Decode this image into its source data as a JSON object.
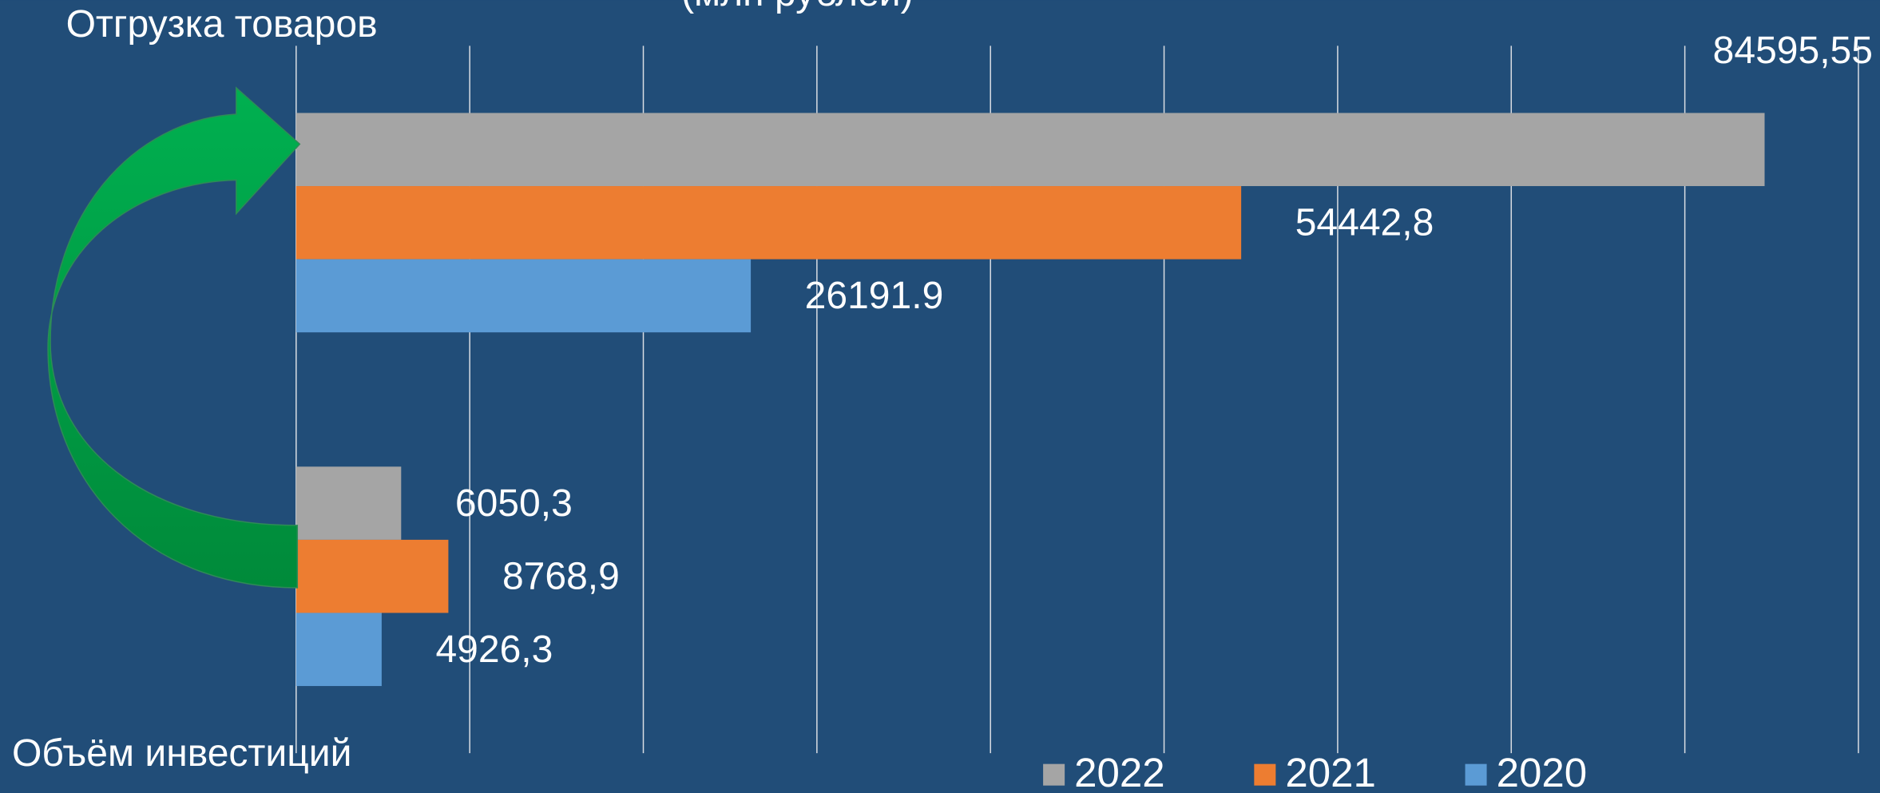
{
  "chart_data": {
    "type": "bar",
    "orientation": "horizontal",
    "title": "(млн рублей)",
    "categories": [
      "Отгрузка товаров",
      "Объём инвестиций"
    ],
    "series": [
      {
        "name": "2022",
        "color": "#a5a5a5",
        "values": [
          84595.55,
          6050.3
        ],
        "value_labels": [
          "84595,55",
          "6050,3"
        ]
      },
      {
        "name": "2021",
        "color": "#ed7d31",
        "values": [
          54442.8,
          8768.9
        ],
        "value_labels": [
          "54442,8",
          "8768,9"
        ]
      },
      {
        "name": "2020",
        "color": "#5b9bd5",
        "values": [
          26191.9,
          4926.3
        ],
        "value_labels": [
          "26191.9",
          "4926,3"
        ]
      }
    ],
    "xlim": [
      0,
      90000
    ],
    "xticks": [
      0,
      10000,
      20000,
      30000,
      40000,
      50000,
      60000,
      70000,
      80000,
      90000
    ],
    "grid": true,
    "legend": "bottom"
  }
}
